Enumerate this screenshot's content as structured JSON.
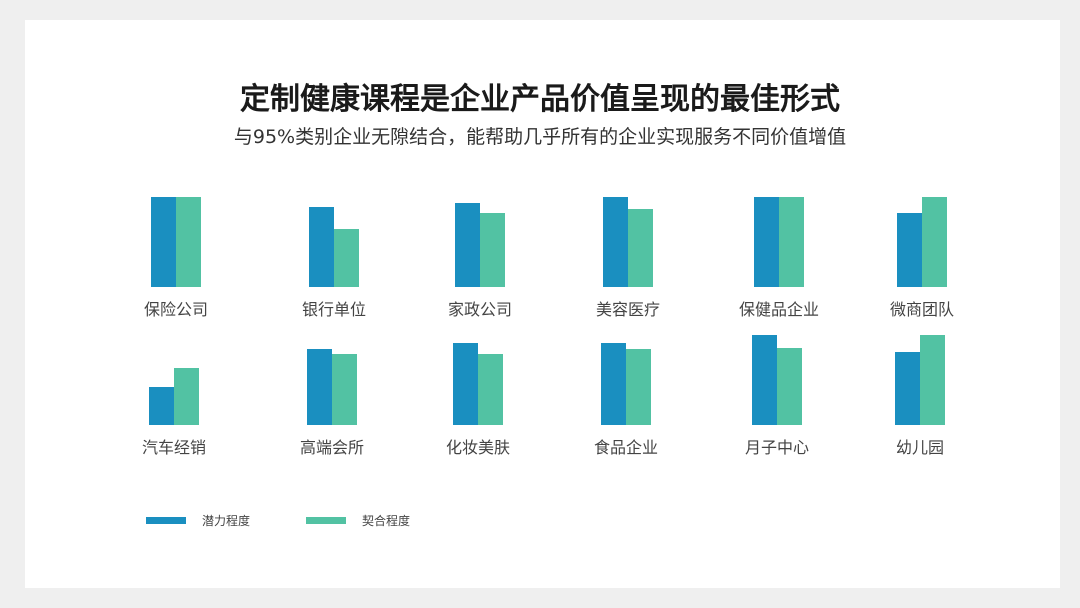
{
  "chart_data": {
    "type": "bar",
    "title": "定制健康课程是企业产品价值呈现的最佳形式",
    "subtitle": "与95%类别企业无隙结合，能帮助几乎所有的企业实现服务不同价值增值",
    "categories": [
      "保险公司",
      "银行单位",
      "家政公司",
      "美容医疗",
      "保健品企业",
      "微商团队",
      "汽车经销",
      "高端会所",
      "化妆美肤",
      "食品企业",
      "月子中心",
      "幼儿园"
    ],
    "series": [
      {
        "name": "潜力程度",
        "color": "#1a8fc0",
        "values": [
          100,
          89,
          93,
          100,
          100,
          82,
          42,
          85,
          91,
          91,
          100,
          81
        ]
      },
      {
        "name": "契合程度",
        "color": "#52c2a3",
        "values": [
          100,
          64,
          82,
          87,
          100,
          100,
          63,
          79,
          79,
          84,
          86,
          100
        ]
      }
    ],
    "ylim": [
      0,
      100
    ],
    "axes": "none",
    "grid": false,
    "legend": "bottom-left"
  }
}
